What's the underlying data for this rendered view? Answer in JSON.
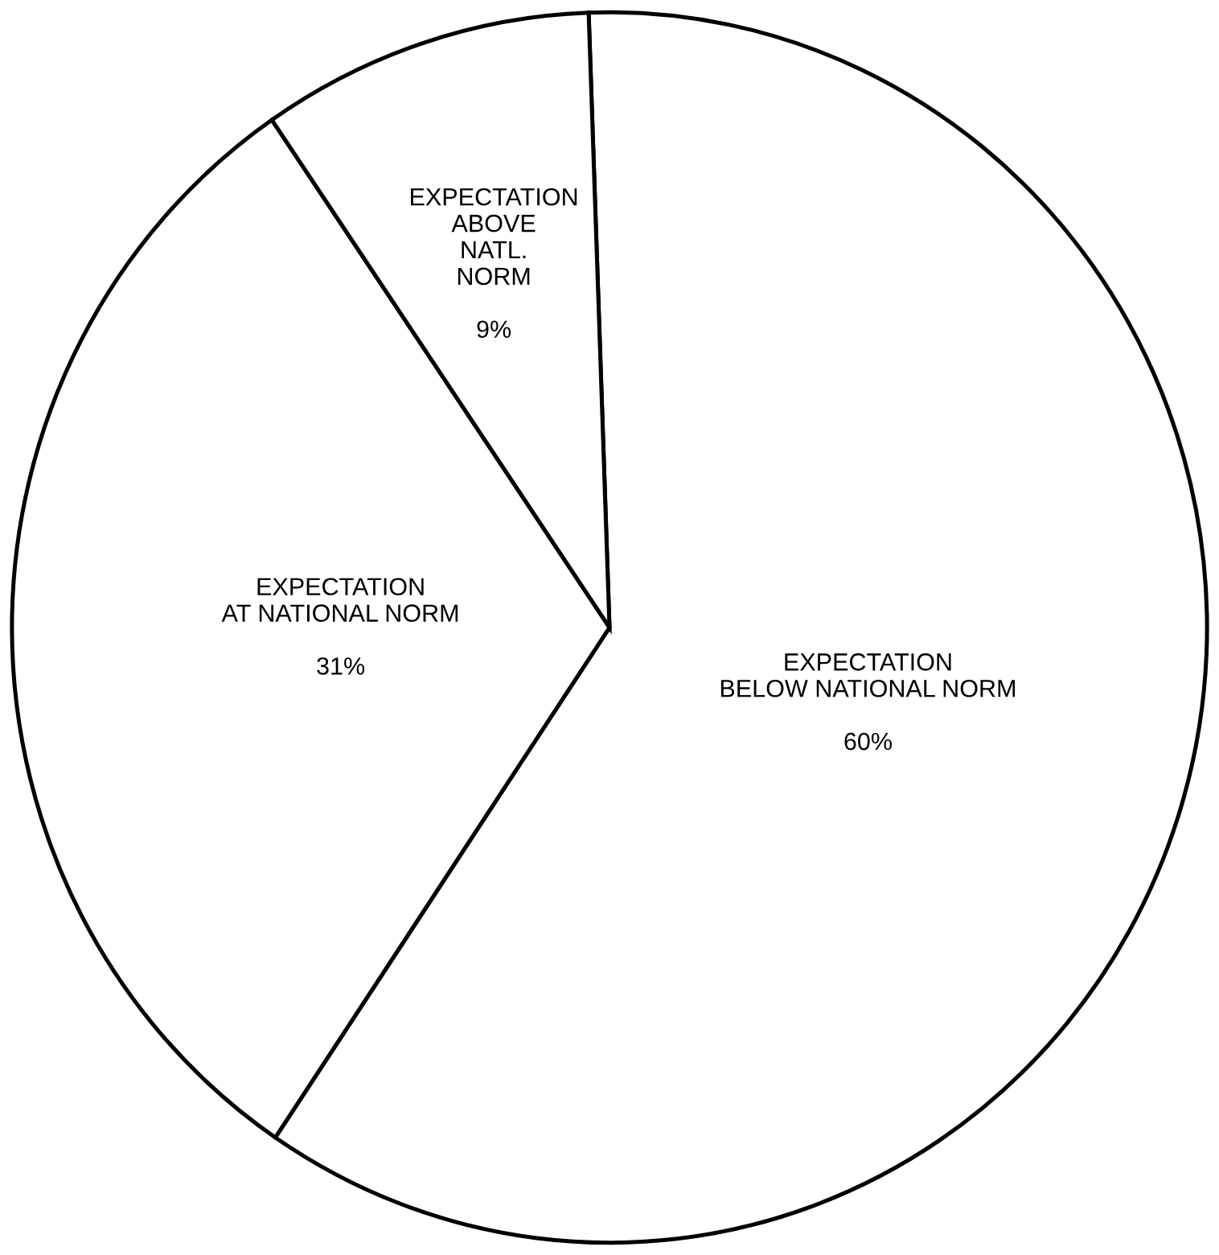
{
  "chart_data": {
    "type": "pie",
    "categories": [
      "EXPECTATION\nBELOW NATIONAL NORM",
      "EXPECTATION\nAT NATIONAL NORM",
      "EXPECTATION\nABOVE\nNATL.\nNORM"
    ],
    "values": [
      60,
      31,
      9
    ],
    "value_labels": [
      "60%",
      "31%",
      "9%"
    ],
    "colors": [
      "#ffffff",
      "#ffffff",
      "#ffffff"
    ]
  }
}
